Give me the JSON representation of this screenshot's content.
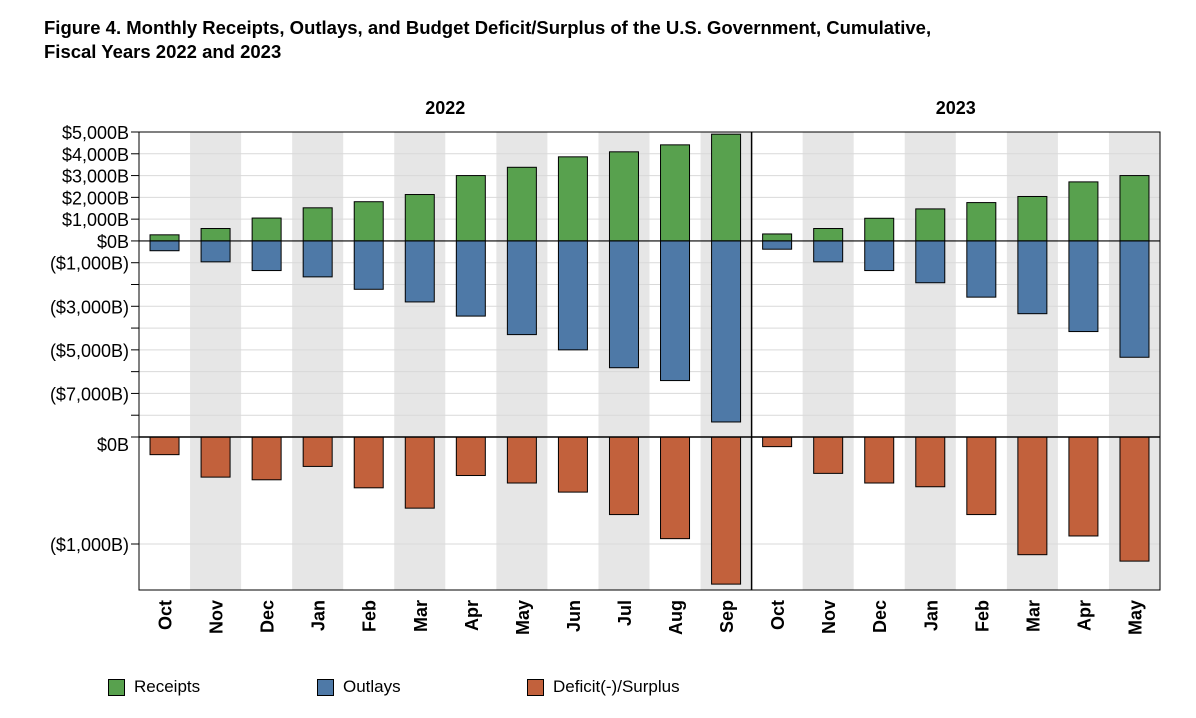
{
  "title_line1": "Figure 4. Monthly Receipts, Outlays, and Budget Deficit/Surplus of the U.S. Government, Cumulative,",
  "title_line2": "Fiscal Years 2022 and 2023",
  "colors": {
    "receipts": "#58a14e",
    "outlays": "#4e79a7",
    "deficit": "#c2613c",
    "band": "#e6e6e6",
    "grid": "#d9d9d9"
  },
  "legend": [
    {
      "key": "receipts",
      "label": "Receipts"
    },
    {
      "key": "outlays",
      "label": "Outlays"
    },
    {
      "key": "deficit",
      "label": "Deficit(-)/Surplus"
    }
  ],
  "chart_data": {
    "type": "bar",
    "title": "Figure 4. Monthly Receipts, Outlays, and Budget Deficit/Surplus of the U.S. Government, Cumulative, Fiscal Years 2022 and 2023",
    "panels": [
      {
        "year": "2022",
        "categories": [
          "Oct",
          "Nov",
          "Dec",
          "Jan",
          "Feb",
          "Mar",
          "Apr",
          "May",
          "Jun",
          "Jul",
          "Aug",
          "Sep"
        ],
        "receipts": [
          280,
          570,
          1050,
          1520,
          1800,
          2130,
          3000,
          3380,
          3860,
          4090,
          4410,
          4900
        ],
        "outlays": [
          -450,
          -960,
          -1360,
          -1650,
          -2220,
          -2800,
          -3450,
          -4300,
          -5000,
          -5820,
          -6410,
          -8310
        ],
        "deficit": [
          -165,
          -375,
          -400,
          -275,
          -475,
          -665,
          -360,
          -430,
          -515,
          -725,
          -950,
          -1375
        ]
      },
      {
        "year": "2023",
        "categories": [
          "Oct",
          "Nov",
          "Dec",
          "Jan",
          "Feb",
          "Mar",
          "Apr",
          "May"
        ],
        "receipts": [
          320,
          570,
          1040,
          1470,
          1760,
          2040,
          2710,
          3000
        ],
        "outlays": [
          -380,
          -960,
          -1360,
          -1920,
          -2580,
          -3340,
          -4160,
          -5340
        ],
        "deficit": [
          -90,
          -340,
          -430,
          -465,
          -725,
          -1100,
          -925,
          -1160
        ]
      }
    ],
    "top_axis": {
      "ticks": [
        {
          "v": 5000,
          "label": "$5,000B"
        },
        {
          "v": 4000,
          "label": "$4,000B"
        },
        {
          "v": 3000,
          "label": "$3,000B"
        },
        {
          "v": 2000,
          "label": "$2,000B"
        },
        {
          "v": 1000,
          "label": "$1,000B"
        },
        {
          "v": 0,
          "label": "$0B"
        },
        {
          "v": -1000,
          "label": "($1,000B)"
        },
        {
          "v": -3000,
          "label": "($3,000B)"
        },
        {
          "v": -5000,
          "label": "($5,000B)"
        },
        {
          "v": -7000,
          "label": "($7,000B)"
        }
      ],
      "minor_ticks": [
        -2000,
        -4000,
        -6000,
        -8000
      ],
      "ylim": [
        -9000,
        5000
      ]
    },
    "bottom_axis": {
      "ticks": [
        {
          "v": 0,
          "label": "$0B"
        },
        {
          "v": -1000,
          "label": "($1,000B)"
        }
      ],
      "ylim": [
        -1430,
        0
      ]
    },
    "grid": true,
    "legend_position": "bottom"
  }
}
